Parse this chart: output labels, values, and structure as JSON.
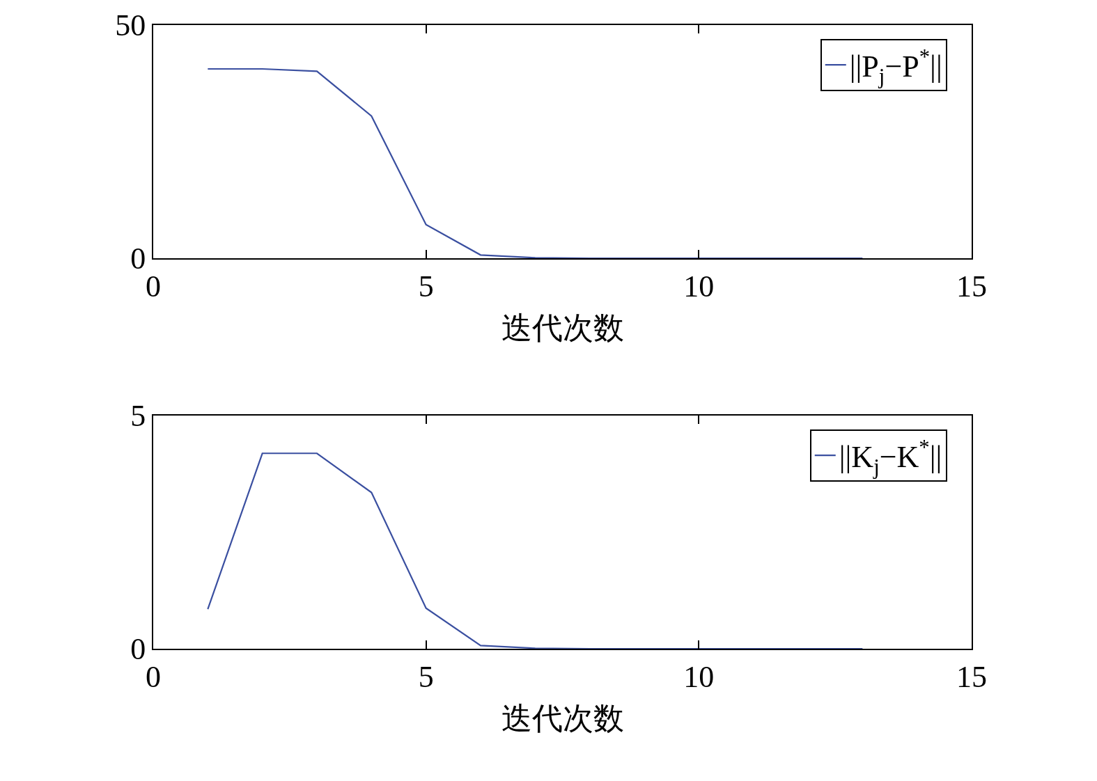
{
  "chart_data": [
    {
      "type": "line",
      "xlabel": "迭代次数",
      "x": [
        1,
        2,
        3,
        4,
        5,
        6,
        7,
        8,
        9,
        10,
        11,
        12,
        13
      ],
      "series": [
        {
          "name": "||P$_{j}$−P$^{*}$||",
          "color": "#3a4fa0",
          "values": [
            40.6,
            40.6,
            40.1,
            30.5,
            7.2,
            0.7,
            0.1,
            0,
            0,
            0,
            0,
            0,
            0
          ]
        }
      ],
      "xlim": [
        0,
        15
      ],
      "xticks": [
        0,
        5,
        10,
        15
      ],
      "ylim": [
        0,
        50
      ],
      "yticks": [
        0,
        50
      ],
      "grid": false,
      "legend": "top right",
      "marker": "none",
      "line_style": "solid"
    },
    {
      "type": "line",
      "xlabel": "迭代次数",
      "x": [
        1,
        2,
        3,
        4,
        5,
        6,
        7,
        8,
        9,
        10,
        11,
        12,
        13
      ],
      "series": [
        {
          "name": "||K$_{j}$−K$^{*}$||",
          "color": "#3a4fa0",
          "values": [
            0.85,
            4.19,
            4.19,
            3.35,
            0.87,
            0.07,
            0.01,
            0,
            0,
            0,
            0,
            0,
            0
          ]
        }
      ],
      "xlim": [
        0,
        15
      ],
      "xticks": [
        0,
        5,
        10,
        15
      ],
      "ylim": [
        0,
        5
      ],
      "yticks": [
        0,
        5
      ],
      "grid": false,
      "legend": "top right",
      "marker": "none",
      "line_style": "solid"
    }
  ]
}
